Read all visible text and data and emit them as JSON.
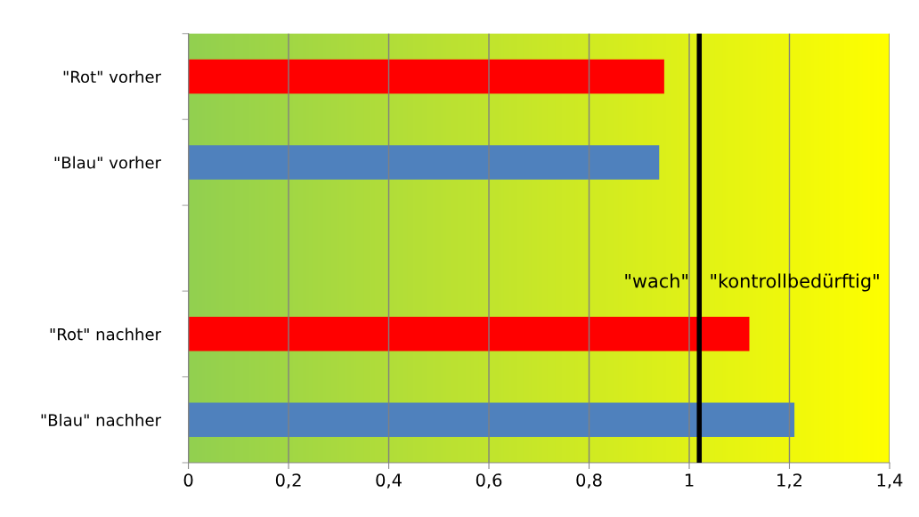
{
  "chart_data": {
    "type": "bar",
    "orientation": "horizontal",
    "categories": [
      "\"Rot\" vorher",
      "\"Blau\" vorher",
      null,
      "\"Rot\" nachher",
      "\"Blau\" nachher"
    ],
    "values": [
      0.95,
      0.94,
      null,
      1.12,
      1.21
    ],
    "colors": [
      "#ff0000",
      "#4f81bd",
      "#4f81bd",
      "#ff0000",
      "#4f81bd"
    ],
    "xlim": [
      0,
      1.4
    ],
    "xticks": [
      0,
      {
        "value": 0.2,
        "label": "0,2"
      },
      {
        "value": 0.4,
        "label": "0,4"
      },
      {
        "value": 0.6,
        "label": "0,6"
      },
      {
        "value": 0.8,
        "label": "0,8"
      },
      1,
      {
        "value": 1.2,
        "label": "1,2"
      },
      {
        "value": 1.4,
        "label": "1,4"
      }
    ],
    "grid": "x",
    "ref_lines": [
      {
        "axis": "x",
        "value": 1.02,
        "color": "#000000"
      }
    ],
    "annotations": [
      "\"wach\"",
      "\"kontrollbedürftig\""
    ]
  }
}
